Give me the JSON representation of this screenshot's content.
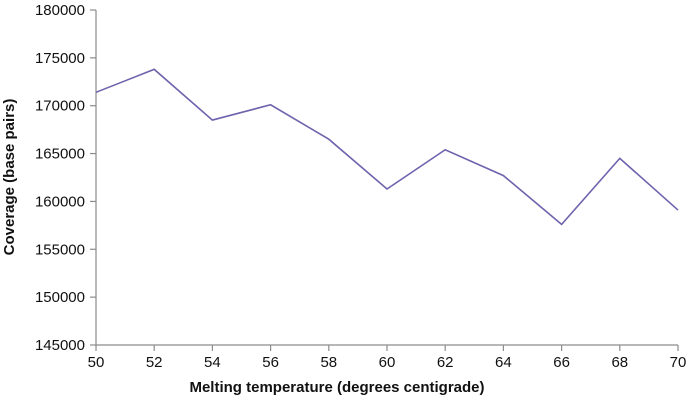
{
  "chart_data": {
    "type": "line",
    "title": "",
    "xlabel": "Melting temperature (degrees centigrade)",
    "ylabel": "Coverage (base pairs)",
    "x": [
      50,
      52,
      54,
      56,
      58,
      60,
      62,
      64,
      66,
      68,
      70
    ],
    "series": [
      {
        "values": [
          171400,
          173800,
          168500,
          170100,
          166500,
          161300,
          165400,
          162700,
          157600,
          164500,
          159100
        ],
        "color": "#6e64ad"
      }
    ],
    "xlim": [
      50,
      70
    ],
    "ylim": [
      145000,
      180000
    ],
    "x_ticks": [
      "50",
      "52",
      "54",
      "56",
      "58",
      "60",
      "62",
      "64",
      "66",
      "68",
      "70"
    ],
    "y_ticks": [
      "145000",
      "150000",
      "155000",
      "160000",
      "165000",
      "170000",
      "175000",
      "180000"
    ],
    "grid": false,
    "legend": "none"
  }
}
